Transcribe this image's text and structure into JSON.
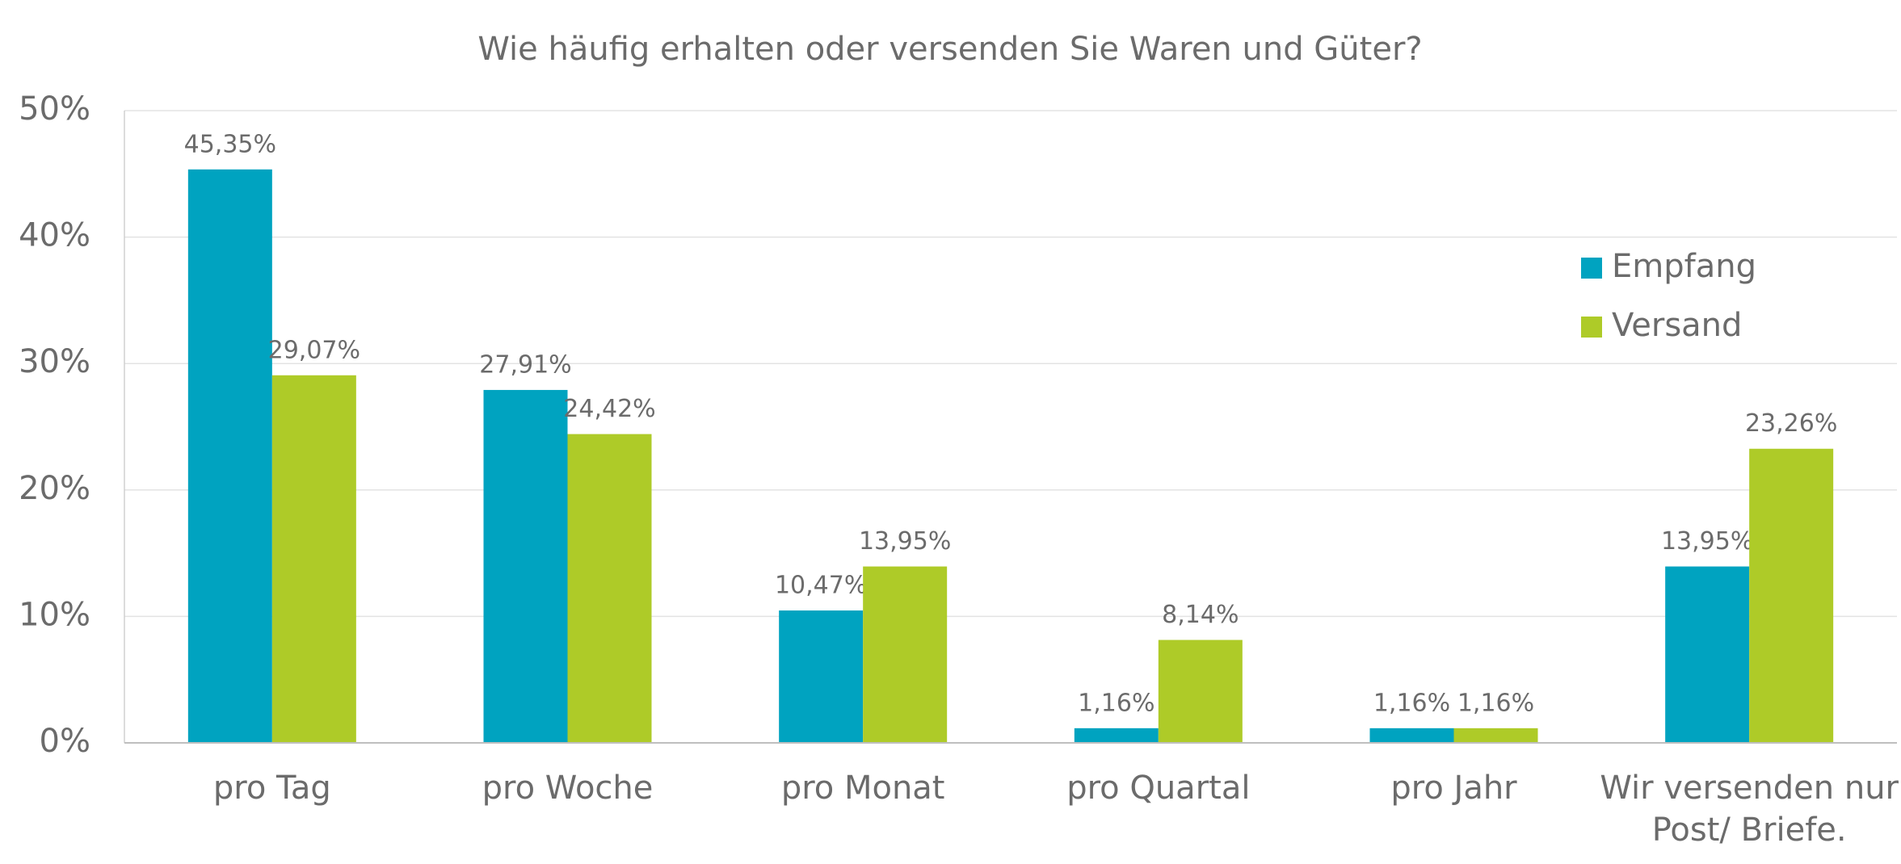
{
  "chart_data": {
    "type": "bar",
    "title": "Wie häufig erhalten oder versenden Sie Waren und Güter?",
    "categories": [
      "pro Tag",
      "pro Woche",
      "pro Monat",
      "pro Quartal",
      "pro Jahr",
      "Wir versenden nur Post/ Briefe."
    ],
    "series": [
      {
        "name": "Empfang",
        "color": "#00a3c0",
        "values": [
          45.35,
          27.91,
          10.47,
          1.16,
          1.16,
          13.95
        ],
        "value_labels": [
          "45,35%",
          "27,91%",
          "10,47%",
          "1,16%",
          "1,16%",
          "13,95%"
        ]
      },
      {
        "name": "Versand",
        "color": "#aecb28",
        "values": [
          29.07,
          24.42,
          13.95,
          8.14,
          1.16,
          23.26
        ],
        "value_labels": [
          "29,07%",
          "24,42%",
          "13,95%",
          "8,14%",
          "1,16%",
          "23,26%"
        ]
      }
    ],
    "ylim": [
      0,
      50
    ],
    "yticks": [
      {
        "value": 0,
        "label": "0%"
      },
      {
        "value": 10,
        "label": "10%"
      },
      {
        "value": 20,
        "label": "20%"
      },
      {
        "value": 30,
        "label": "30%"
      },
      {
        "value": 40,
        "label": "40%"
      },
      {
        "value": 50,
        "label": "50%"
      }
    ],
    "grid": true,
    "legend": "right"
  }
}
